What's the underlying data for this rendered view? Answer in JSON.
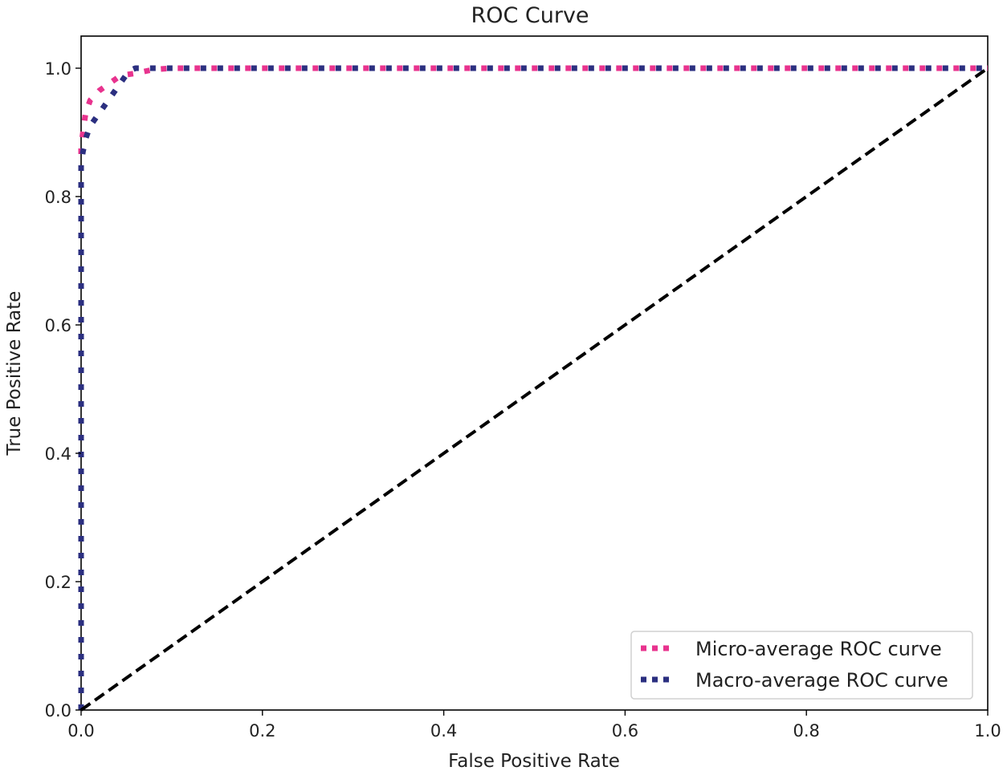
{
  "chart_data": {
    "type": "line",
    "title": "ROC Curve",
    "xlabel": "False Positive Rate",
    "ylabel": "True Positive Rate",
    "xlim": [
      0.0,
      1.0
    ],
    "ylim": [
      0.0,
      1.05
    ],
    "x_ticks": [
      0.0,
      0.2,
      0.4,
      0.6,
      0.8,
      1.0
    ],
    "x_tick_labels": [
      "0.0",
      "0.2",
      "0.4",
      "0.6",
      "0.8",
      "1.0"
    ],
    "y_ticks": [
      0.0,
      0.2,
      0.4,
      0.6,
      0.8,
      1.0
    ],
    "y_tick_labels": [
      "0.0",
      "0.2",
      "0.4",
      "0.6",
      "0.8",
      "1.0"
    ],
    "grid": false,
    "legend_position": "lower-right",
    "series": [
      {
        "name": "Micro-average ROC curve",
        "color": "#e8338e",
        "style": "dotted",
        "x": [
          0.0,
          0.0,
          0.002,
          0.005,
          0.01,
          0.02,
          0.03,
          0.04,
          0.05,
          0.06,
          0.07,
          0.08,
          0.1,
          0.2,
          0.4,
          0.6,
          0.8,
          1.0
        ],
        "y": [
          0.0,
          0.88,
          0.9,
          0.93,
          0.95,
          0.965,
          0.975,
          0.985,
          0.99,
          0.992,
          0.995,
          0.998,
          1.0,
          1.0,
          1.0,
          1.0,
          1.0,
          1.0
        ]
      },
      {
        "name": "Macro-average ROC curve",
        "color": "#2b2f80",
        "style": "dotted",
        "x": [
          0.0,
          0.0,
          0.002,
          0.005,
          0.01,
          0.02,
          0.03,
          0.04,
          0.05,
          0.055,
          0.06,
          0.08,
          0.1,
          0.2,
          0.4,
          0.6,
          0.8,
          1.0
        ],
        "y": [
          0.0,
          0.85,
          0.87,
          0.89,
          0.91,
          0.93,
          0.95,
          0.97,
          0.99,
          0.997,
          1.0,
          1.0,
          1.0,
          1.0,
          1.0,
          1.0,
          1.0,
          1.0
        ]
      },
      {
        "color": "#000000",
        "style": "dashed",
        "x": [
          0.0,
          1.0
        ],
        "y": [
          0.0,
          1.0
        ]
      }
    ]
  }
}
